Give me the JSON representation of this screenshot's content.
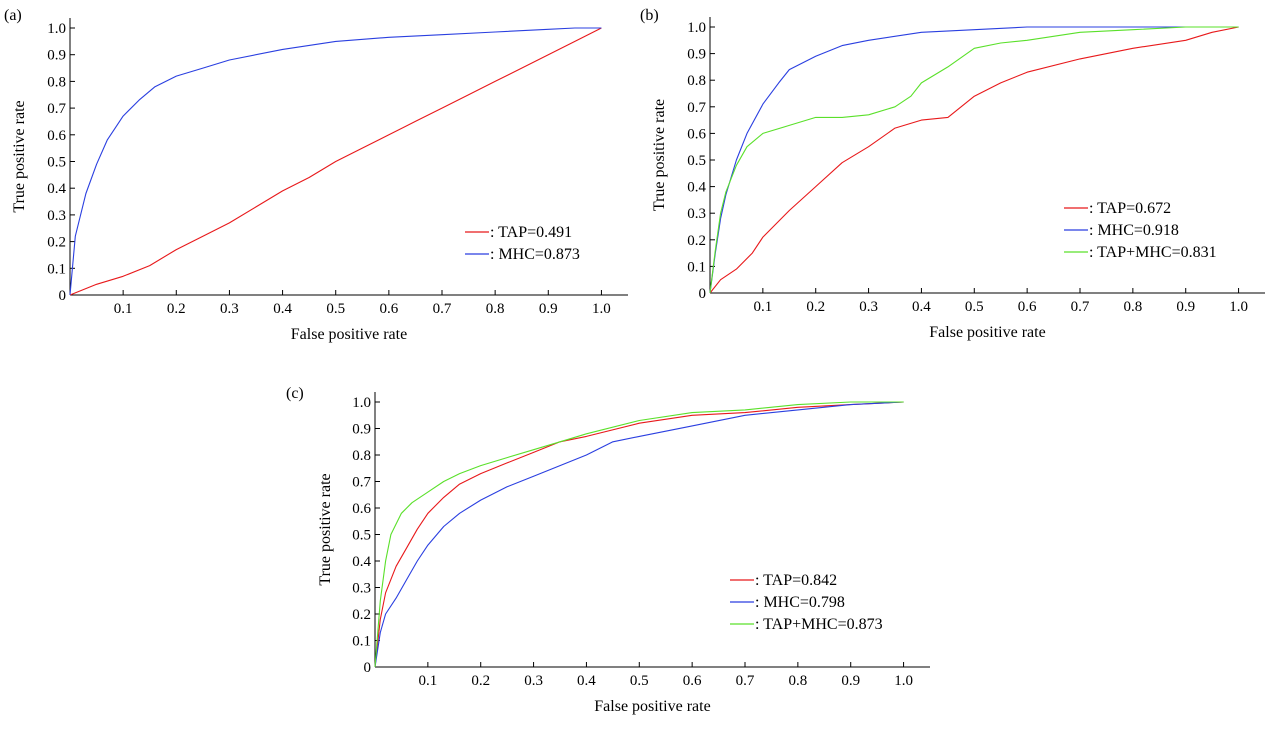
{
  "chart_data": [
    {
      "type": "line",
      "panel_label": "(a)",
      "xlabel": "False positive rate",
      "ylabel": "True positive rate",
      "xlim": [
        0,
        1.05
      ],
      "ylim": [
        0,
        1.0
      ],
      "xticks": [
        0.1,
        0.2,
        0.3,
        0.4,
        0.5,
        0.6,
        0.7,
        0.8,
        0.9,
        1.0
      ],
      "xtick_labels": [
        "0.1",
        "0.2",
        "0.3",
        "0.4",
        "0.5",
        "0.6",
        "0.7",
        "0.8",
        "0.9",
        "1.0"
      ],
      "yticks": [
        0,
        0.1,
        0.2,
        0.3,
        0.4,
        0.5,
        0.6,
        0.7,
        0.8,
        0.9,
        1.0
      ],
      "ytick_labels": [
        "0",
        "0.1",
        "0.2",
        "0.3",
        "0.4",
        "0.5",
        "0.6",
        "0.7",
        "0.8",
        "0.9",
        "1.0"
      ],
      "legend_position": "bottom-right",
      "series": [
        {
          "name": ": TAP=0.491",
          "color": "#e8191b",
          "x": [
            0,
            0.05,
            0.1,
            0.15,
            0.2,
            0.25,
            0.3,
            0.35,
            0.4,
            0.45,
            0.5,
            0.55,
            0.6,
            0.65,
            0.7,
            0.75,
            0.8,
            0.85,
            0.9,
            0.95,
            1.0
          ],
          "y": [
            0,
            0.04,
            0.07,
            0.11,
            0.17,
            0.22,
            0.27,
            0.33,
            0.39,
            0.44,
            0.5,
            0.55,
            0.6,
            0.65,
            0.7,
            0.75,
            0.8,
            0.85,
            0.9,
            0.95,
            1.0
          ]
        },
        {
          "name": ": MHC=0.873",
          "color": "#2a3fe0",
          "x": [
            0,
            0.01,
            0.03,
            0.05,
            0.07,
            0.1,
            0.13,
            0.16,
            0.2,
            0.25,
            0.3,
            0.4,
            0.5,
            0.6,
            0.7,
            0.8,
            0.9,
            0.95,
            1.0
          ],
          "y": [
            0,
            0.22,
            0.38,
            0.49,
            0.58,
            0.67,
            0.73,
            0.78,
            0.82,
            0.85,
            0.88,
            0.92,
            0.95,
            0.965,
            0.975,
            0.985,
            0.995,
            1.0,
            1.0
          ]
        }
      ]
    },
    {
      "type": "line",
      "panel_label": "(b)",
      "xlabel": "False positive rate",
      "ylabel": "True positive rate",
      "xlim": [
        0,
        1.05
      ],
      "ylim": [
        0,
        1.0
      ],
      "xticks": [
        0.1,
        0.2,
        0.3,
        0.4,
        0.5,
        0.6,
        0.7,
        0.8,
        0.9,
        1.0
      ],
      "xtick_labels": [
        "0.1",
        "0.2",
        "0.3",
        "0.4",
        "0.5",
        "0.6",
        "0.7",
        "0.8",
        "0.9",
        "1.0"
      ],
      "yticks": [
        0,
        0.1,
        0.2,
        0.3,
        0.4,
        0.5,
        0.6,
        0.7,
        0.8,
        0.9,
        1.0
      ],
      "ytick_labels": [
        "0",
        "0.1",
        "0.2",
        "0.3",
        "0.4",
        "0.5",
        "0.6",
        "0.7",
        "0.8",
        "0.9",
        "1.0"
      ],
      "legend_position": "bottom-right",
      "series": [
        {
          "name": ": TAP=0.672",
          "color": "#e8191b",
          "x": [
            0,
            0.02,
            0.05,
            0.08,
            0.1,
            0.15,
            0.2,
            0.25,
            0.3,
            0.35,
            0.4,
            0.45,
            0.5,
            0.55,
            0.6,
            0.7,
            0.8,
            0.9,
            0.95,
            1.0
          ],
          "y": [
            0,
            0.05,
            0.09,
            0.15,
            0.21,
            0.31,
            0.4,
            0.49,
            0.55,
            0.62,
            0.65,
            0.66,
            0.74,
            0.79,
            0.83,
            0.88,
            0.92,
            0.95,
            0.98,
            1.0
          ]
        },
        {
          "name": ": MHC=0.918",
          "color": "#2a3fe0",
          "x": [
            0,
            0.01,
            0.02,
            0.03,
            0.05,
            0.07,
            0.1,
            0.13,
            0.15,
            0.2,
            0.25,
            0.3,
            0.4,
            0.5,
            0.6,
            0.7,
            0.8,
            1.0
          ],
          "y": [
            0,
            0.15,
            0.28,
            0.37,
            0.5,
            0.6,
            0.71,
            0.79,
            0.84,
            0.89,
            0.93,
            0.95,
            0.98,
            0.99,
            1.0,
            1.0,
            1.0,
            1.0
          ]
        },
        {
          "name": ": TAP+MHC=0.831",
          "color": "#5ae02a",
          "x": [
            0,
            0.01,
            0.02,
            0.03,
            0.05,
            0.07,
            0.1,
            0.15,
            0.2,
            0.25,
            0.3,
            0.35,
            0.38,
            0.4,
            0.45,
            0.5,
            0.55,
            0.6,
            0.7,
            0.8,
            0.9,
            1.0
          ],
          "y": [
            0,
            0.16,
            0.3,
            0.38,
            0.48,
            0.55,
            0.6,
            0.63,
            0.66,
            0.66,
            0.67,
            0.7,
            0.74,
            0.79,
            0.85,
            0.92,
            0.94,
            0.95,
            0.98,
            0.99,
            1.0,
            1.0
          ]
        }
      ]
    },
    {
      "type": "line",
      "panel_label": "(c)",
      "xlabel": "False positive rate",
      "ylabel": "True positive rate",
      "xlim": [
        0,
        1.05
      ],
      "ylim": [
        0,
        1.0
      ],
      "xticks": [
        0.1,
        0.2,
        0.3,
        0.4,
        0.5,
        0.6,
        0.7,
        0.8,
        0.9,
        1.0
      ],
      "xtick_labels": [
        "0.1",
        "0.2",
        "0.3",
        "0.4",
        "0.5",
        "0.6",
        "0.7",
        "0.8",
        "0.9",
        "1.0"
      ],
      "yticks": [
        0,
        0.1,
        0.2,
        0.3,
        0.4,
        0.5,
        0.6,
        0.7,
        0.8,
        0.9,
        1.0
      ],
      "ytick_labels": [
        "0",
        "0.1",
        "0.2",
        "0.3",
        "0.4",
        "0.5",
        "0.6",
        "0.7",
        "0.8",
        "0.9",
        "1.0"
      ],
      "legend_position": "bottom-right",
      "series": [
        {
          "name": ": TAP=0.842",
          "color": "#e8191b",
          "x": [
            0,
            0.01,
            0.02,
            0.04,
            0.06,
            0.08,
            0.1,
            0.13,
            0.16,
            0.2,
            0.25,
            0.3,
            0.35,
            0.4,
            0.5,
            0.6,
            0.7,
            0.8,
            0.9,
            1.0
          ],
          "y": [
            0,
            0.18,
            0.28,
            0.38,
            0.45,
            0.52,
            0.58,
            0.64,
            0.69,
            0.73,
            0.77,
            0.81,
            0.85,
            0.87,
            0.92,
            0.95,
            0.96,
            0.98,
            0.99,
            1.0
          ]
        },
        {
          "name": ": MHC=0.798",
          "color": "#2a3fe0",
          "x": [
            0,
            0.01,
            0.02,
            0.04,
            0.06,
            0.08,
            0.1,
            0.13,
            0.16,
            0.2,
            0.25,
            0.3,
            0.35,
            0.4,
            0.45,
            0.5,
            0.6,
            0.7,
            0.8,
            0.9,
            1.0
          ],
          "y": [
            0,
            0.13,
            0.2,
            0.26,
            0.33,
            0.4,
            0.46,
            0.53,
            0.58,
            0.63,
            0.68,
            0.72,
            0.76,
            0.8,
            0.85,
            0.87,
            0.91,
            0.95,
            0.97,
            0.99,
            1.0
          ]
        },
        {
          "name": ": TAP+MHC=0.873",
          "color": "#5ae02a",
          "x": [
            0,
            0.01,
            0.02,
            0.03,
            0.05,
            0.07,
            0.1,
            0.13,
            0.16,
            0.2,
            0.25,
            0.3,
            0.35,
            0.4,
            0.5,
            0.6,
            0.7,
            0.8,
            0.9,
            1.0
          ],
          "y": [
            0,
            0.25,
            0.4,
            0.5,
            0.58,
            0.62,
            0.66,
            0.7,
            0.73,
            0.76,
            0.79,
            0.82,
            0.85,
            0.88,
            0.93,
            0.96,
            0.97,
            0.99,
            1.0,
            1.0
          ]
        }
      ]
    }
  ]
}
